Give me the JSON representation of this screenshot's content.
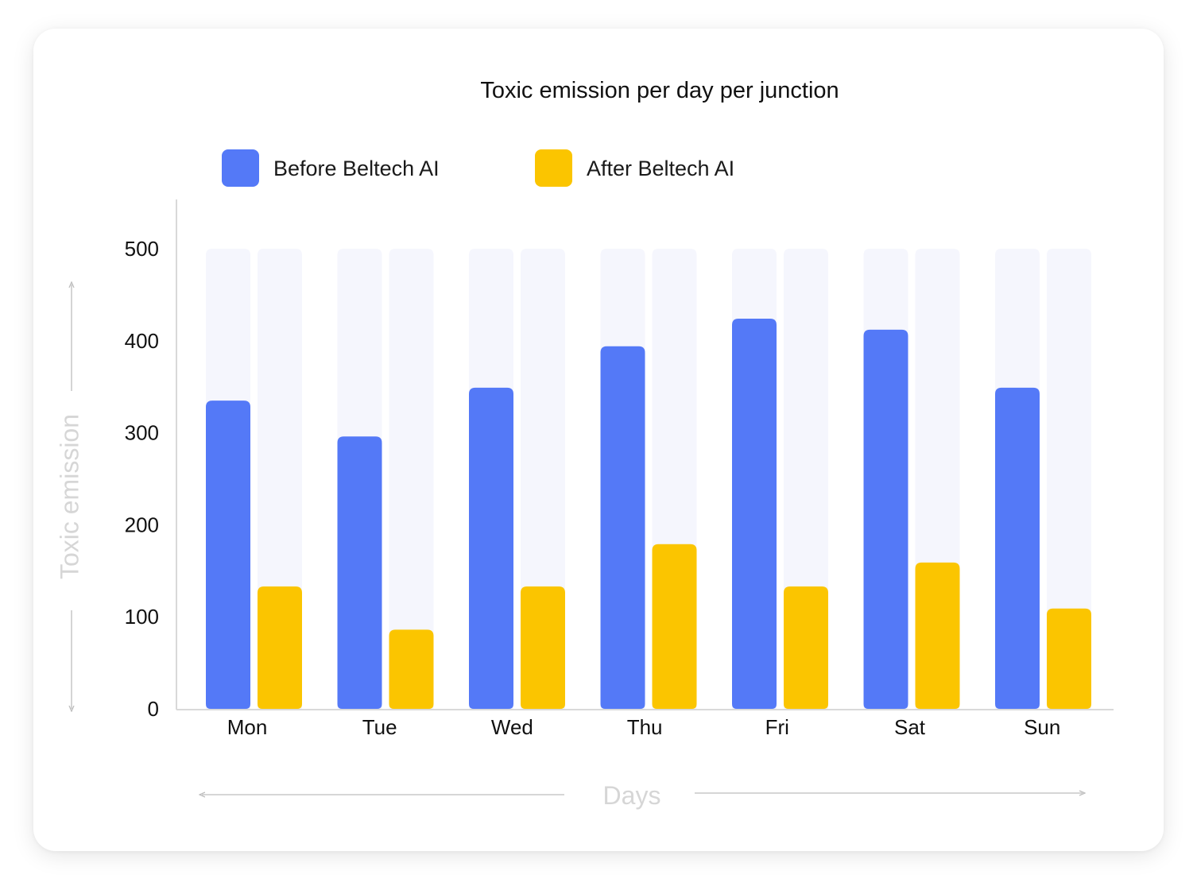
{
  "chart_data": {
    "type": "bar",
    "title": "Toxic emission per day per junction",
    "xlabel": "Days",
    "ylabel": "Toxic emission",
    "categories": [
      "Mon",
      "Tue",
      "Wed",
      "Thu",
      "Fri",
      "Sat",
      "Sun"
    ],
    "series": [
      {
        "name": "Before Beltech AI",
        "color": "#5479F7",
        "values": [
          335,
          296,
          349,
          394,
          424,
          412,
          349
        ]
      },
      {
        "name": "After Beltech AI",
        "color": "#FBC500",
        "values": [
          133,
          86,
          133,
          179,
          133,
          159,
          109
        ]
      }
    ],
    "y_ticks": [
      0,
      100,
      200,
      300,
      400,
      500
    ],
    "ylim": [
      0,
      500
    ],
    "background_bar_color": "#F5F6FD",
    "legend_position": "top",
    "grid": false
  }
}
